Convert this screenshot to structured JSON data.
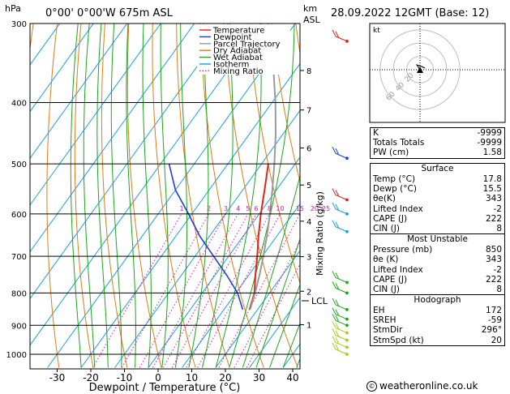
{
  "header": {
    "left_title": "0°00' 0°00'W 675m ASL",
    "right_title": "28.09.2022 12GMT (Base: 12)",
    "hpa_label": "hPa",
    "km_label": "km",
    "asl_label": "ASL"
  },
  "chart_data": {
    "type": "line",
    "xlabel": "Dewpoint / Temperature (°C)",
    "ylabel": "",
    "right_axis_label": "Mixing Ratio (g/kg)",
    "x_ticks": [
      -30,
      -20,
      -10,
      0,
      10,
      20,
      30,
      40
    ],
    "pressure_levels": [
      300,
      400,
      500,
      600,
      700,
      800,
      900,
      1000
    ],
    "km_ticks": [
      {
        "km": "8",
        "p": 356
      },
      {
        "km": "7",
        "p": 411
      },
      {
        "km": "6",
        "p": 472
      },
      {
        "km": "5",
        "p": 540
      },
      {
        "km": "4",
        "p": 616
      },
      {
        "km": "3",
        "p": 701
      },
      {
        "km": "2",
        "p": 795
      },
      {
        "km": "1",
        "p": 898
      }
    ],
    "lcl": {
      "label": "LCL",
      "p": 870
    },
    "mixing_ratio_labels": [
      "1",
      "2",
      "3",
      "4",
      "5",
      "6",
      "8",
      "10",
      "15",
      "20",
      "25"
    ],
    "mixing_ratio_values": [
      1,
      2,
      3,
      4,
      5,
      6,
      8,
      10,
      15,
      20,
      25
    ],
    "legend": [
      {
        "name": "Temperature",
        "color": "#e8201c",
        "style": "solid"
      },
      {
        "name": "Dewpoint",
        "color": "#1a3ee0",
        "style": "solid"
      },
      {
        "name": "Parcel Trajectory",
        "color": "#9a9a9a",
        "style": "solid"
      },
      {
        "name": "Dry Adiabat",
        "color": "#e07b16",
        "style": "solid"
      },
      {
        "name": "Wet Adiabat",
        "color": "#18a818",
        "style": "solid"
      },
      {
        "name": "Isotherm",
        "color": "#1aa0e0",
        "style": "solid"
      },
      {
        "name": "Mixing Ratio",
        "color": "#d21cb8",
        "style": "dotted"
      }
    ],
    "series": [
      {
        "name": "Temperature",
        "points": [
          [
            850,
            17.6
          ],
          [
            800,
            15.5
          ],
          [
            750,
            12.0
          ],
          [
            700,
            8.5
          ],
          [
            650,
            4.5
          ],
          [
            600,
            0.5
          ],
          [
            550,
            -3.5
          ],
          [
            500,
            -8.0
          ]
        ]
      },
      {
        "name": "Dewpoint",
        "points": [
          [
            850,
            15.6
          ],
          [
            800,
            10.5
          ],
          [
            750,
            3.5
          ],
          [
            700,
            -4.5
          ],
          [
            650,
            -13.0
          ],
          [
            600,
            -21.0
          ],
          [
            550,
            -30.0
          ],
          [
            500,
            -37.5
          ]
        ]
      },
      {
        "name": "Parcel Trajectory",
        "points": [
          [
            850,
            17.8
          ],
          [
            800,
            15.7
          ],
          [
            750,
            13.2
          ],
          [
            700,
            10.3
          ],
          [
            650,
            7.0
          ],
          [
            600,
            3.2
          ],
          [
            550,
            -1.2
          ],
          [
            500,
            -6.2
          ],
          [
            450,
            -12.0
          ],
          [
            400,
            -19.0
          ],
          [
            350,
            -27.5
          ],
          [
            300,
            -38.0
          ]
        ]
      }
    ],
    "wind_barb_levels": [
      {
        "p": 320,
        "color": "#e8201c"
      },
      {
        "p": 490,
        "color": "#1a3ee0"
      },
      {
        "p": 570,
        "color": "#e8201c"
      },
      {
        "p": 600,
        "color": "#1aa0e0"
      },
      {
        "p": 640,
        "color": "#1aa0e0"
      },
      {
        "p": 770,
        "color": "#18a818"
      },
      {
        "p": 800,
        "color": "#18a818"
      },
      {
        "p": 850,
        "color": "#18a818"
      },
      {
        "p": 880,
        "color": "#18a818"
      },
      {
        "p": 900,
        "color": "#18a818"
      },
      {
        "p": 925,
        "color": "#a6cc1a"
      },
      {
        "p": 950,
        "color": "#a6cc1a"
      },
      {
        "p": 975,
        "color": "#a6cc1a"
      },
      {
        "p": 1000,
        "color": "#a6cc1a"
      }
    ]
  },
  "hodograph": {
    "unit_label": "kt",
    "ring_labels": [
      "20",
      "40",
      "60"
    ],
    "ring_values_kt": [
      20,
      40,
      60
    ]
  },
  "indices": [
    {
      "label": "K",
      "value": "-9999"
    },
    {
      "label": "Totals Totals",
      "value": "-9999"
    },
    {
      "label": "PW (cm)",
      "value": "1.58"
    }
  ],
  "surface": {
    "title": "Surface",
    "rows": [
      {
        "label": "Temp (°C)",
        "value": "17.8"
      },
      {
        "label": "Dewp (°C)",
        "value": "15.5"
      },
      {
        "label": "θe(K)",
        "value": "343"
      },
      {
        "label": "Lifted Index",
        "value": "-2"
      },
      {
        "label": "CAPE (J)",
        "value": "222"
      },
      {
        "label": "CIN (J)",
        "value": "8"
      }
    ]
  },
  "most_unstable": {
    "title": "Most Unstable",
    "rows": [
      {
        "label": "Pressure (mb)",
        "value": "850"
      },
      {
        "label": "θe (K)",
        "value": "343"
      },
      {
        "label": "Lifted Index",
        "value": "-2"
      },
      {
        "label": "CAPE (J)",
        "value": "222"
      },
      {
        "label": "CIN (J)",
        "value": "8"
      }
    ]
  },
  "hodograph_table": {
    "title": "Hodograph",
    "rows": [
      {
        "label": "EH",
        "value": "172"
      },
      {
        "label": "SREH",
        "value": "-59"
      },
      {
        "label": "StmDir",
        "value": "296°"
      },
      {
        "label": "StmSpd (kt)",
        "value": "20"
      }
    ]
  },
  "footer": {
    "copyright_symbol": "©",
    "site": "weatheronline.co.uk"
  },
  "colors": {
    "temperature": "#e8201c",
    "dewpoint": "#1a3ee0",
    "parcel": "#9a9a9a",
    "dry_adiabat": "#e07b16",
    "wet_adiabat": "#18a818",
    "isotherm": "#1aa0e0",
    "mixing_ratio": "#d21cb8"
  }
}
